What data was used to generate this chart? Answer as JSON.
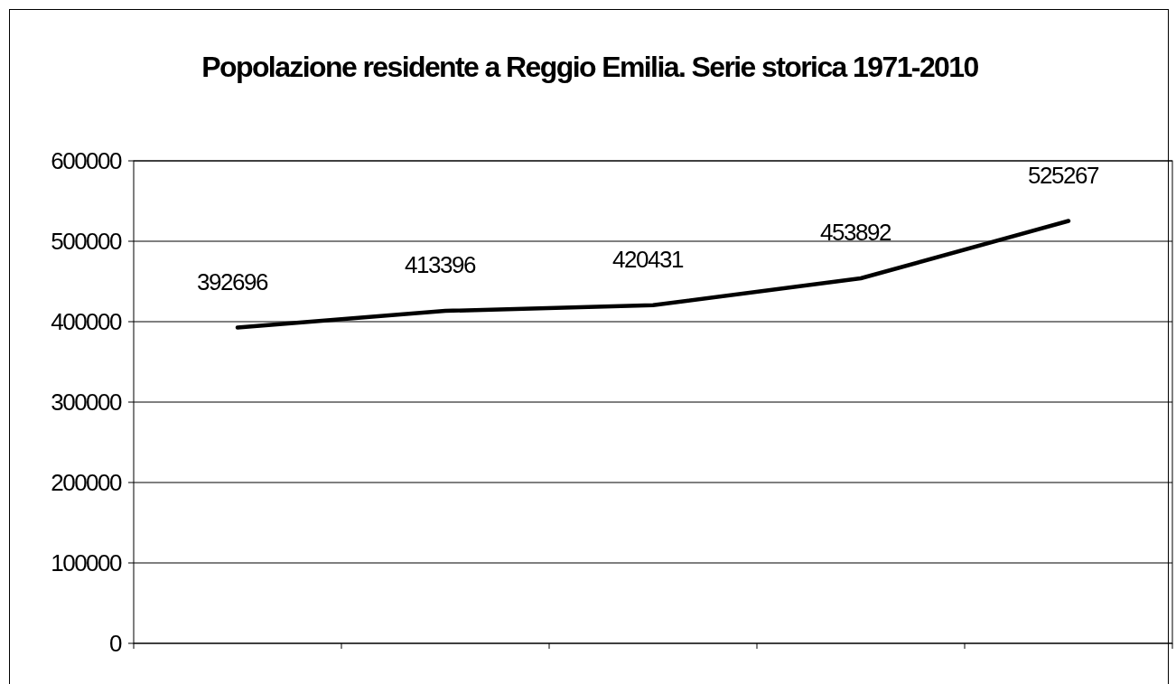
{
  "chart_data": {
    "type": "line",
    "title": "Popolazione residente a Reggio Emilia. Serie storica 1971-2010",
    "categories": [
      null,
      null,
      null,
      null,
      null
    ],
    "series": [
      {
        "color": "#000000",
        "values": [
          392696,
          413396,
          420431,
          453892,
          525267
        ]
      }
    ],
    "ylim": [
      0,
      600000
    ],
    "yticks": [
      0,
      100000,
      200000,
      300000,
      400000,
      500000,
      600000
    ],
    "grid": "y",
    "marker": "none",
    "line_style": "solid",
    "data_labels": true
  }
}
